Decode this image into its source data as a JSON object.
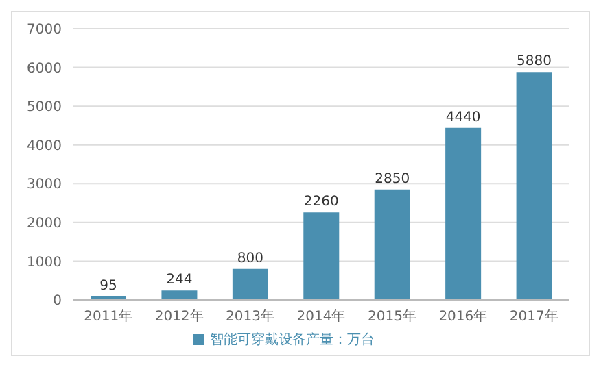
{
  "chart_data": {
    "type": "bar",
    "categories": [
      "2011年",
      "2012年",
      "2013年",
      "2014年",
      "2015年",
      "2016年",
      "2017年"
    ],
    "series": [
      {
        "name": "智能可穿戴设备产量：万台",
        "color": "#4a8fb0",
        "values": [
          95,
          244,
          800,
          2260,
          2850,
          4440,
          5880
        ]
      }
    ],
    "ylim": [
      0,
      7000
    ],
    "yticks": [
      0,
      1000,
      2000,
      3000,
      4000,
      5000,
      6000,
      7000
    ],
    "grid": "y",
    "legend": "bottom",
    "data_labels": true
  }
}
